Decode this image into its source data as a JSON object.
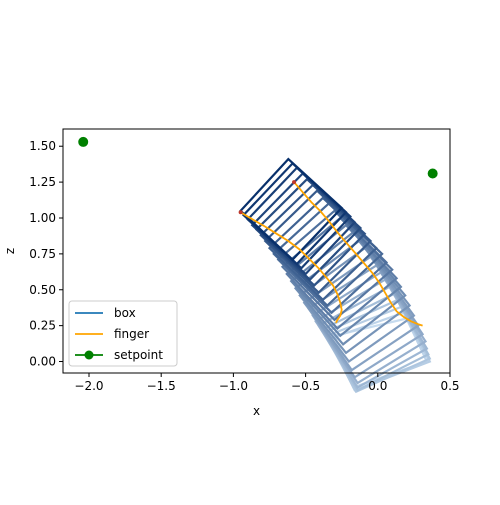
{
  "chart_data": {
    "type": "line",
    "title": "",
    "xlabel": "x",
    "ylabel": "z",
    "xlim": [
      -2.18,
      0.5
    ],
    "ylim": [
      -0.08,
      1.62
    ],
    "x_ticks": [
      -2.0,
      -1.5,
      -1.0,
      -0.5,
      0.0,
      0.5
    ],
    "x_tick_labels": [
      "−2.0",
      "−1.5",
      "−1.0",
      "−0.5",
      "0.0",
      "0.5"
    ],
    "y_ticks": [
      0.0,
      0.25,
      0.5,
      0.75,
      1.0,
      1.25,
      1.5
    ],
    "y_tick_labels": [
      "0.00",
      "0.25",
      "0.50",
      "0.75",
      "1.00",
      "1.25",
      "1.50"
    ],
    "grid": false,
    "legend_position": "lower-left",
    "series": [
      {
        "name": "box",
        "color": "#1f77b4",
        "style": "rotated square outlines, colored light blue (early) to dark navy (late)",
        "box_frames": [
          [
            -0.62,
            1.41,
            -0.95,
            1.05,
            -0.59,
            0.71,
            -0.25,
            1.07
          ],
          [
            -0.59,
            1.38,
            -0.93,
            1.02,
            -0.56,
            0.68,
            -0.22,
            1.04
          ],
          [
            -0.56,
            1.35,
            -0.9,
            0.99,
            -0.53,
            0.65,
            -0.19,
            1.01
          ],
          [
            -0.52,
            1.31,
            -0.87,
            0.95,
            -0.5,
            0.61,
            -0.16,
            0.97
          ],
          [
            -0.49,
            1.27,
            -0.84,
            0.92,
            -0.47,
            0.57,
            -0.12,
            0.93
          ],
          [
            -0.45,
            1.23,
            -0.81,
            0.88,
            -0.44,
            0.53,
            -0.09,
            0.89
          ],
          [
            -0.42,
            1.19,
            -0.78,
            0.84,
            -0.41,
            0.48,
            -0.05,
            0.84
          ],
          [
            -0.38,
            1.14,
            -0.75,
            0.79,
            -0.38,
            0.43,
            -0.01,
            0.79
          ],
          [
            -0.34,
            1.1,
            -0.72,
            0.75,
            -0.35,
            0.39,
            0.03,
            0.75
          ],
          [
            -0.3,
            1.05,
            -0.69,
            0.71,
            -0.32,
            0.34,
            0.06,
            0.69
          ],
          [
            -0.26,
            1.0,
            -0.66,
            0.66,
            -0.3,
            0.29,
            0.1,
            0.64
          ],
          [
            -0.22,
            0.95,
            -0.63,
            0.61,
            -0.28,
            0.23,
            0.13,
            0.58
          ],
          [
            -0.17,
            0.9,
            -0.6,
            0.56,
            -0.26,
            0.18,
            0.16,
            0.52
          ],
          [
            -0.13,
            0.84,
            -0.57,
            0.51,
            -0.24,
            0.12,
            0.19,
            0.46
          ],
          [
            -0.09,
            0.79,
            -0.54,
            0.46,
            -0.22,
            0.06,
            0.22,
            0.39
          ],
          [
            -0.05,
            0.73,
            -0.51,
            0.41,
            -0.2,
            0.0,
            0.25,
            0.32
          ],
          [
            -0.01,
            0.67,
            -0.48,
            0.37,
            -0.18,
            -0.06,
            0.28,
            0.25
          ],
          [
            0.02,
            0.62,
            -0.45,
            0.32,
            -0.16,
            -0.11,
            0.31,
            0.19
          ],
          [
            0.05,
            0.57,
            -0.43,
            0.28,
            -0.14,
            -0.15,
            0.33,
            0.14
          ],
          [
            0.08,
            0.52,
            -0.41,
            0.25,
            -0.14,
            -0.18,
            0.34,
            0.09
          ],
          [
            0.11,
            0.47,
            -0.39,
            0.22,
            -0.14,
            -0.2,
            0.35,
            0.05
          ],
          [
            0.14,
            0.43,
            -0.37,
            0.2,
            -0.15,
            -0.21,
            0.36,
            0.02
          ],
          [
            0.16,
            0.38,
            -0.35,
            0.18,
            -0.16,
            -0.2,
            0.36,
            0.0
          ],
          [
            0.18,
            0.34,
            -0.33,
            0.16,
            -0.17,
            -0.18,
            0.34,
            0.0
          ],
          [
            0.2,
            0.3,
            -0.3,
            0.18,
            -0.16,
            -0.18,
            0.34,
            0.0
          ]
        ]
      },
      {
        "name": "finger",
        "color": "#ffa500",
        "x": [
          -0.58,
          -0.52,
          -0.46,
          -0.4,
          -0.34,
          -0.28,
          -0.22,
          -0.16,
          -0.1,
          -0.04,
          0.01,
          0.05,
          0.09,
          0.13,
          0.18,
          0.23,
          0.28,
          0.31
        ],
        "y": [
          1.25,
          1.18,
          1.11,
          1.05,
          0.98,
          0.9,
          0.83,
          0.76,
          0.69,
          0.62,
          0.55,
          0.48,
          0.41,
          0.35,
          0.31,
          0.28,
          0.26,
          0.25
        ]
      },
      {
        "name": "finger",
        "color": "#ffa500",
        "x": [
          -0.95,
          -0.9,
          -0.85,
          -0.78,
          -0.7,
          -0.62,
          -0.54,
          -0.47,
          -0.41,
          -0.36,
          -0.31,
          -0.28,
          -0.26,
          -0.25,
          -0.26,
          -0.28,
          -0.29
        ],
        "y": [
          1.04,
          1.01,
          0.98,
          0.94,
          0.89,
          0.84,
          0.78,
          0.71,
          0.65,
          0.59,
          0.53,
          0.47,
          0.41,
          0.36,
          0.32,
          0.29,
          0.27
        ]
      },
      {
        "name": "setpoint",
        "color": "#008000",
        "marker": "circle",
        "x": [
          -2.04,
          0.38
        ],
        "y": [
          1.53,
          1.31
        ]
      }
    ],
    "legend": [
      {
        "label": "box",
        "color": "#1f77b4",
        "marker": false
      },
      {
        "label": "finger",
        "color": "#ffa500",
        "marker": false
      },
      {
        "label": "setpoint",
        "color": "#008000",
        "marker": true
      }
    ]
  }
}
